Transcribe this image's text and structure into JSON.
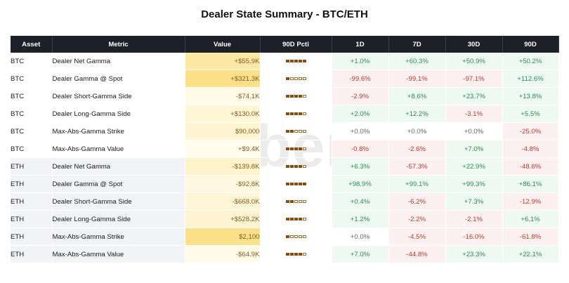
{
  "title": "Dealer State Summary - BTC/ETH",
  "watermark": "amberdata",
  "colors": {
    "header_bg": "#1c2127",
    "positive_text": "#2e8b57",
    "negative_text": "#c0392b",
    "neutral_text": "#666666",
    "value_text": "#8b5a1a"
  },
  "columns": [
    "Asset",
    "Metric",
    "Value",
    "90D Pctl",
    "1D",
    "7D",
    "30D",
    "90D"
  ],
  "rows": [
    {
      "asset": "BTC",
      "metric": "Dealer Net Gamma",
      "value": "+$55.9K",
      "pctl": 5,
      "value_bg": "#fce9a6",
      "d1": "+1.0%",
      "d7": "+60.3%",
      "d30": "+50.9%",
      "d90": "+50.2%"
    },
    {
      "asset": "BTC",
      "metric": "Dealer Gamma @ Spot",
      "value": "+$321.3K",
      "pctl": 1,
      "value_bg": "#fce08a",
      "d1": "-99.6%",
      "d7": "-99.1%",
      "d30": "-97.1%",
      "d90": "+112.6%"
    },
    {
      "asset": "BTC",
      "metric": "Dealer Short-Gamma Side",
      "value": "-$74.1K",
      "pctl": 4,
      "value_bg": "#fffbe8",
      "d1": "-2.9%",
      "d7": "+8.6%",
      "d30": "+23.7%",
      "d90": "+13.8%"
    },
    {
      "asset": "BTC",
      "metric": "Dealer Long-Gamma Side",
      "value": "+$130.0K",
      "pctl": 4,
      "value_bg": "#fff6d6",
      "d1": "+2.0%",
      "d7": "+12.2%",
      "d30": "-3.1%",
      "d90": "+5.5%"
    },
    {
      "asset": "BTC",
      "metric": "Max-Abs-Gamma Strike",
      "value": "$90,000",
      "pctl": 2,
      "value_bg": "#fff5d3",
      "d1": "+0.0%",
      "d7": "+0.0%",
      "d30": "+0.0%",
      "d90": "-25.0%"
    },
    {
      "asset": "BTC",
      "metric": "Max-Abs-Gamma Value",
      "value": "+$9.4K",
      "pctl": 4,
      "value_bg": "#fffcee",
      "d1": "-0.8%",
      "d7": "-2.6%",
      "d30": "+7.0%",
      "d90": "-4.8%"
    },
    {
      "asset": "ETH",
      "metric": "Dealer Net Gamma",
      "value": "-$139.8K",
      "pctl": 4,
      "value_bg": "#fff3cc",
      "d1": "+6.3%",
      "d7": "-57.3%",
      "d30": "+22.9%",
      "d90": "-48.6%"
    },
    {
      "asset": "ETH",
      "metric": "Dealer Gamma @ Spot",
      "value": "-$92.8K",
      "pctl": 5,
      "value_bg": "#fff8e0",
      "d1": "+98.9%",
      "d7": "+99.1%",
      "d30": "+99.3%",
      "d90": "+86.1%"
    },
    {
      "asset": "ETH",
      "metric": "Dealer Short-Gamma Side",
      "value": "-$668.0K",
      "pctl": 2,
      "value_bg": "#fff6d8",
      "d1": "+0.4%",
      "d7": "-6.2%",
      "d30": "+7.3%",
      "d90": "-12.9%"
    },
    {
      "asset": "ETH",
      "metric": "Dealer Long-Gamma Side",
      "value": "+$528.2K",
      "pctl": 4,
      "value_bg": "#fff5d3",
      "d1": "+1.2%",
      "d7": "-2.2%",
      "d30": "-2.1%",
      "d90": "+6.1%"
    },
    {
      "asset": "ETH",
      "metric": "Max-Abs-Gamma Strike",
      "value": "$2,100",
      "pctl": 1,
      "value_bg": "#fce08a",
      "d1": "+0.0%",
      "d7": "-4.5%",
      "d30": "-16.0%",
      "d90": "-61.8%"
    },
    {
      "asset": "ETH",
      "metric": "Max-Abs-Gamma Value",
      "value": "-$64.9K",
      "pctl": 4,
      "value_bg": "#fffbe8",
      "d1": "+7.0%",
      "d7": "-44.8%",
      "d30": "+23.3%",
      "d90": "+22.1%"
    }
  ]
}
